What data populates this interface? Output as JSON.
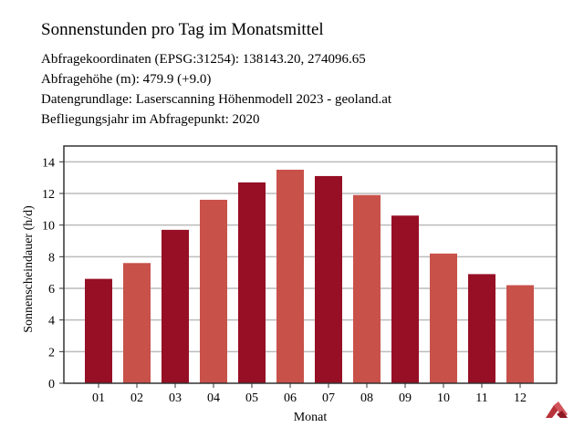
{
  "header": {
    "title": "Sonnenstunden pro Tag im Monatsmittel",
    "lines": [
      "Abfragekoordinaten (EPSG:31254): 138143.20, 274096.65",
      "Abfragehöhe (m): 479.9 (+9.0)",
      "Datengrundlage: Laserscanning Höhenmodell 2023 - geoland.at",
      "Befliegungsjahr im Abfragepunkt: 2020"
    ]
  },
  "chart_data": {
    "type": "bar",
    "title": "Sonnenstunden pro Tag im Monatsmittel",
    "xlabel": "Monat",
    "ylabel": "Sonnenscheindauer (h/d)",
    "categories": [
      "01",
      "02",
      "03",
      "04",
      "05",
      "06",
      "07",
      "08",
      "09",
      "10",
      "11",
      "12"
    ],
    "values": [
      6.6,
      7.6,
      9.7,
      11.6,
      12.7,
      13.5,
      13.1,
      11.9,
      10.6,
      8.2,
      6.9,
      6.2
    ],
    "ylim": [
      0,
      15
    ],
    "yticks": [
      0,
      2,
      4,
      6,
      8,
      10,
      12,
      14
    ],
    "grid": true,
    "colors": [
      "#960f25",
      "#c8514a"
    ]
  },
  "logo": {
    "name": "logo-icon",
    "color": "#b8323a"
  }
}
